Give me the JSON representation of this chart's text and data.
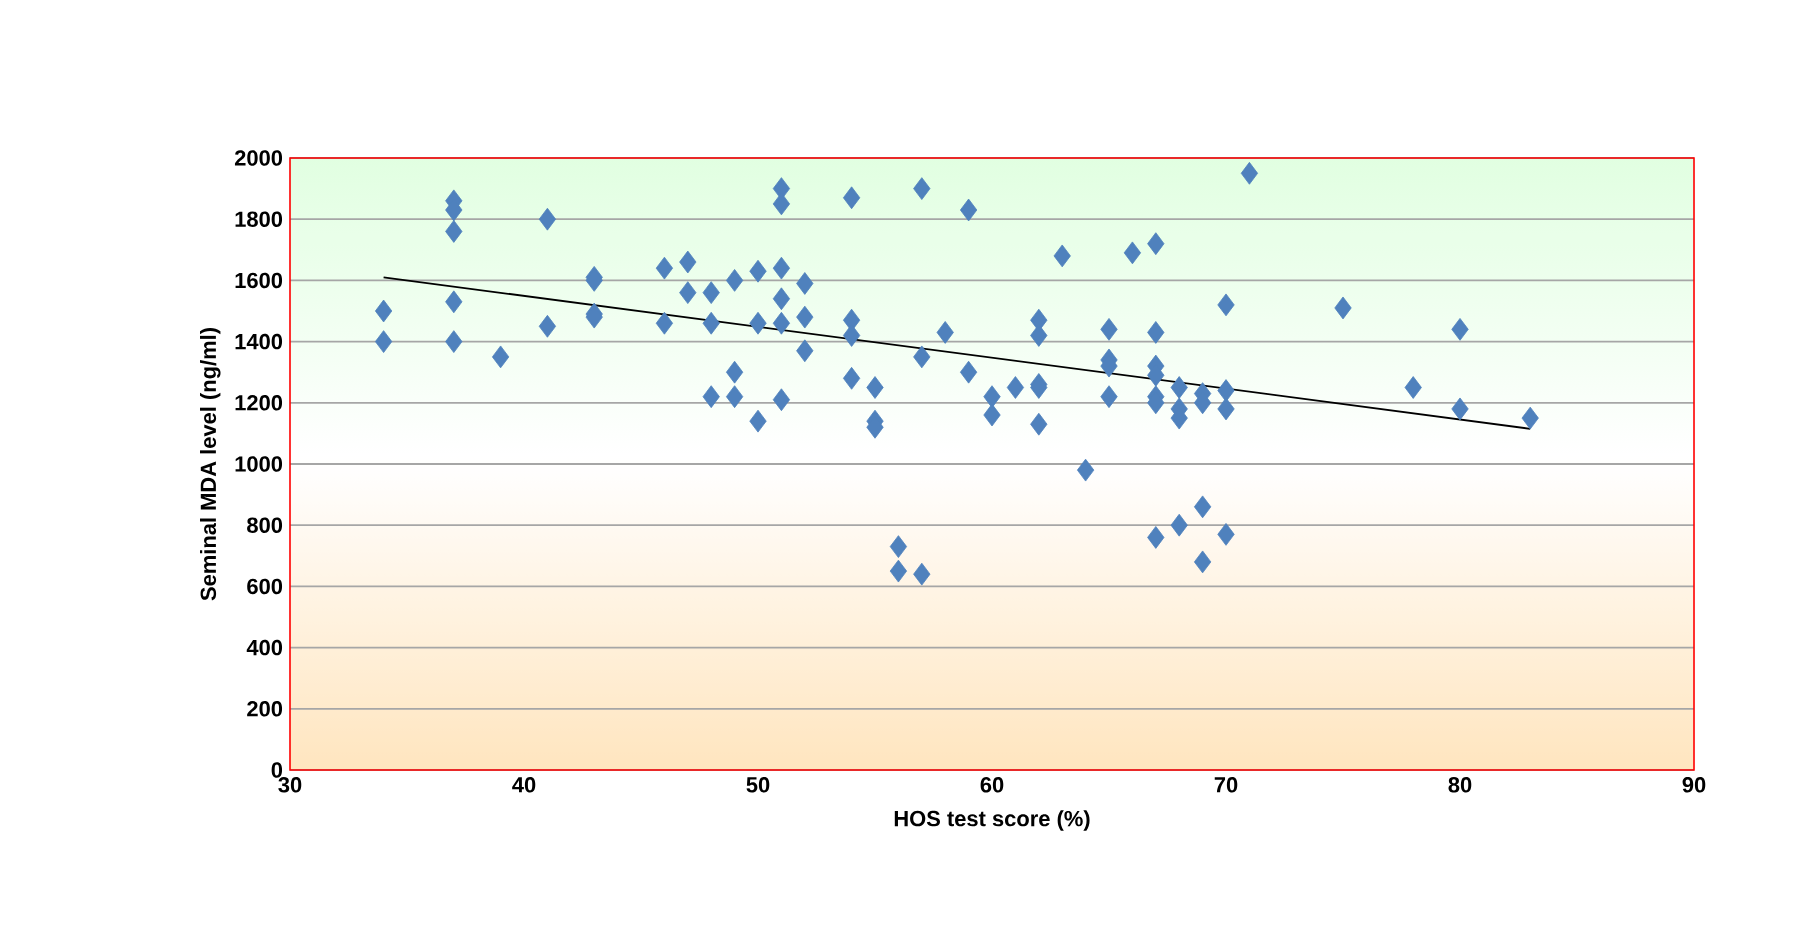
{
  "chart_data": {
    "type": "scatter",
    "xlabel": "HOS test score (%)",
    "ylabel": "Seminal MDA level (ng/ml)",
    "xlim": [
      30,
      90
    ],
    "ylim": [
      0,
      2000
    ],
    "xticks": [
      30,
      40,
      50,
      60,
      70,
      80,
      90
    ],
    "yticks": [
      0,
      200,
      400,
      600,
      800,
      1000,
      1200,
      1400,
      1600,
      1800,
      2000
    ],
    "grid": "y",
    "marker": "diamond",
    "series": [
      {
        "color": "#4f81bd",
        "x": [
          34,
          34,
          37,
          37,
          37,
          37,
          37,
          39,
          41,
          41,
          43,
          43,
          43,
          43,
          46,
          46,
          47,
          47,
          48,
          48,
          48,
          49,
          49,
          49,
          50,
          50,
          50,
          51,
          51,
          51,
          51,
          51,
          51,
          52,
          52,
          52,
          54,
          54,
          54,
          54,
          55,
          55,
          55,
          56,
          56,
          57,
          57,
          57,
          58,
          59,
          59,
          60,
          60,
          61,
          62,
          62,
          62,
          62,
          62,
          63,
          64,
          65,
          65,
          65,
          65,
          66,
          67,
          67,
          67,
          67,
          67,
          67,
          67,
          68,
          68,
          68,
          68,
          69,
          69,
          69,
          69,
          70,
          70,
          70,
          70,
          71,
          75,
          78,
          80,
          80,
          83
        ],
        "values": [
          1500,
          1400,
          1860,
          1830,
          1760,
          1530,
          1400,
          1350,
          1800,
          1450,
          1610,
          1600,
          1490,
          1480,
          1640,
          1460,
          1660,
          1560,
          1560,
          1460,
          1220,
          1600,
          1300,
          1220,
          1630,
          1460,
          1140,
          1900,
          1850,
          1640,
          1540,
          1460,
          1210,
          1590,
          1480,
          1370,
          1870,
          1470,
          1420,
          1280,
          1250,
          1140,
          1120,
          730,
          650,
          1900,
          1350,
          640,
          1430,
          1830,
          1300,
          1220,
          1160,
          1250,
          1470,
          1420,
          1260,
          1250,
          1130,
          1680,
          980,
          1440,
          1340,
          1320,
          1220,
          1690,
          1720,
          1430,
          1320,
          1290,
          1220,
          1200,
          760,
          1250,
          1180,
          1150,
          800,
          1230,
          1200,
          860,
          680,
          1520,
          1240,
          1180,
          770,
          1950,
          1510,
          1250,
          1440,
          1180,
          1150
        ]
      },
      {
        "type": "line",
        "color": "#000000",
        "marker": "none",
        "x": [
          34,
          83
        ],
        "values": [
          1610,
          1115
        ]
      }
    ]
  }
}
